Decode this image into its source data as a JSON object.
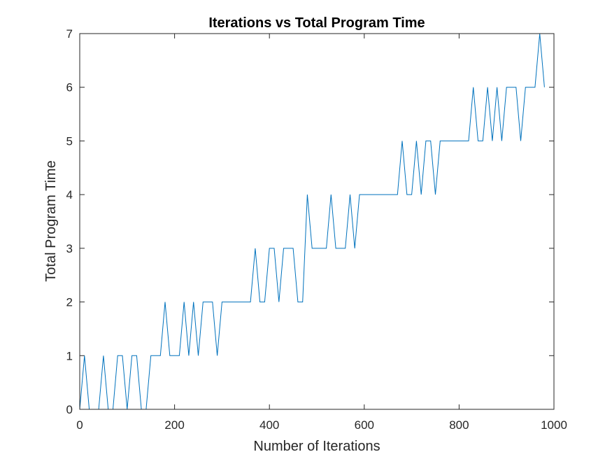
{
  "chart_data": {
    "type": "line",
    "title": "Iterations vs Total Program Time",
    "xlabel": "Number of Iterations",
    "ylabel": "Total Program Time",
    "xlim": [
      0,
      1000
    ],
    "ylim": [
      0,
      7
    ],
    "xticks": [
      "0",
      "200",
      "400",
      "600",
      "800",
      "1000"
    ],
    "yticks": [
      "0",
      "1",
      "2",
      "3",
      "4",
      "5",
      "6",
      "7"
    ],
    "grid": false,
    "legend": "none",
    "line_color": "#0072BD",
    "series": [
      {
        "x": [
          0,
          10,
          20,
          30,
          40,
          50,
          60,
          70,
          80,
          90,
          100,
          110,
          120,
          130,
          140,
          150,
          160,
          170,
          180,
          190,
          200,
          210,
          220,
          230,
          240,
          250,
          260,
          270,
          280,
          290,
          300,
          310,
          320,
          330,
          340,
          350,
          360,
          370,
          380,
          390,
          400,
          410,
          420,
          430,
          440,
          450,
          460,
          470,
          480,
          490,
          500,
          510,
          520,
          530,
          540,
          550,
          560,
          570,
          580,
          590,
          600,
          610,
          620,
          630,
          640,
          650,
          660,
          670,
          680,
          690,
          700,
          710,
          720,
          730,
          740,
          750,
          760,
          770,
          780,
          790,
          800,
          810,
          820,
          830,
          840,
          850,
          860,
          870,
          880,
          890,
          900,
          910,
          920,
          930,
          940,
          950,
          960,
          970,
          980
        ],
        "y": [
          0,
          1,
          0,
          0,
          0,
          1,
          0,
          0,
          1,
          1,
          0,
          1,
          1,
          0,
          0,
          1,
          1,
          1,
          2,
          1,
          1,
          1,
          2,
          1,
          2,
          1,
          2,
          2,
          2,
          1,
          2,
          2,
          2,
          2,
          2,
          2,
          2,
          3,
          2,
          2,
          3,
          3,
          2,
          3,
          3,
          3,
          2,
          2,
          4,
          3,
          3,
          3,
          3,
          4,
          3,
          3,
          3,
          4,
          3,
          4,
          4,
          4,
          4,
          4,
          4,
          4,
          4,
          4,
          5,
          4,
          4,
          5,
          4,
          5,
          5,
          4,
          5,
          5,
          5,
          5,
          5,
          5,
          5,
          6,
          5,
          5,
          6,
          5,
          6,
          5,
          6,
          6,
          6,
          5,
          6,
          6,
          6,
          7,
          6
        ]
      }
    ]
  }
}
